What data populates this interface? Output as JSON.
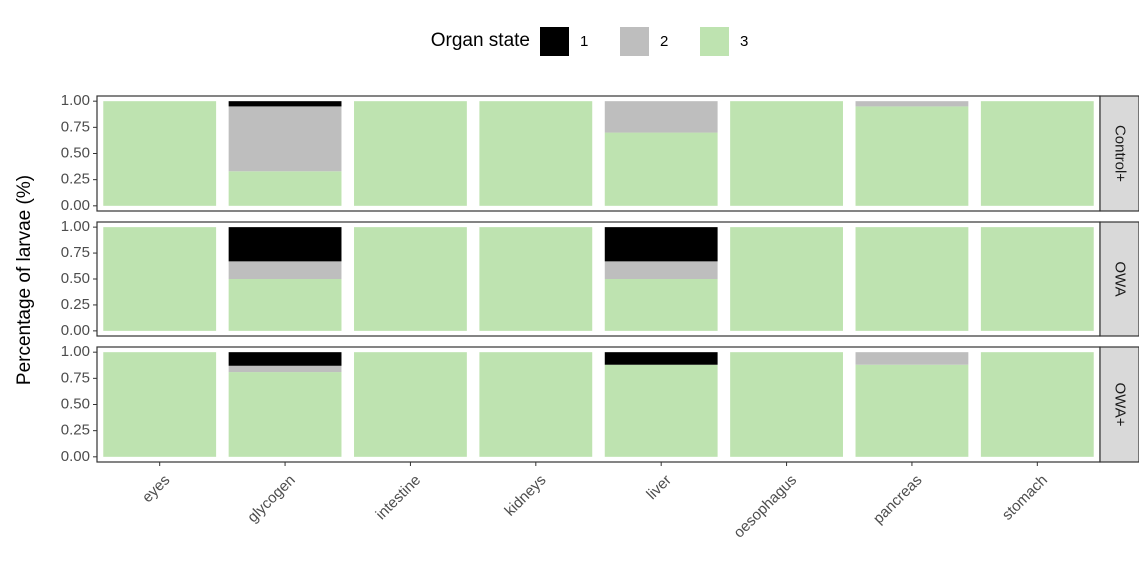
{
  "chart_data": {
    "type": "stacked-bar",
    "ylabel": "Percentage of larvae (%)",
    "legend_title": "Organ state",
    "legend_position": "top",
    "categories": [
      "eyes",
      "glycogen",
      "intestine",
      "kidneys",
      "liver",
      "oesophagus",
      "pancreas",
      "stomach"
    ],
    "series": [
      {
        "name": "1",
        "color": "#000000"
      },
      {
        "name": "2",
        "color": "#bebebe"
      },
      {
        "name": "3",
        "color": "#bee3b0"
      }
    ],
    "ylim": [
      0,
      1
    ],
    "yticks": [
      {
        "value": 0,
        "label": "0.00"
      },
      {
        "value": 0.25,
        "label": "0.25"
      },
      {
        "value": 0.5,
        "label": "0.50"
      },
      {
        "value": 0.75,
        "label": "0.75"
      },
      {
        "value": 1,
        "label": "1.00"
      }
    ],
    "facets": [
      {
        "label": "Control+",
        "values": [
          [
            0,
            0.05,
            0,
            0,
            0,
            0,
            0,
            0
          ],
          [
            0,
            0.62,
            0,
            0,
            0.3,
            0,
            0.05,
            0
          ],
          [
            1,
            0.33,
            1,
            1,
            0.7,
            1,
            0.95,
            1
          ]
        ]
      },
      {
        "label": "OWA",
        "values": [
          [
            0,
            0.33,
            0,
            0,
            0.33,
            0,
            0,
            0
          ],
          [
            0,
            0.17,
            0,
            0,
            0.17,
            0,
            0,
            0
          ],
          [
            1,
            0.5,
            1,
            1,
            0.5,
            1,
            1,
            1
          ]
        ]
      },
      {
        "label": "OWA+",
        "values": [
          [
            0,
            0.13,
            0,
            0,
            0.12,
            0,
            0,
            0
          ],
          [
            0,
            0.06,
            0,
            0,
            0,
            0,
            0.12,
            0
          ],
          [
            1,
            0.81,
            1,
            1,
            0.88,
            1,
            0.88,
            1
          ]
        ]
      }
    ]
  }
}
